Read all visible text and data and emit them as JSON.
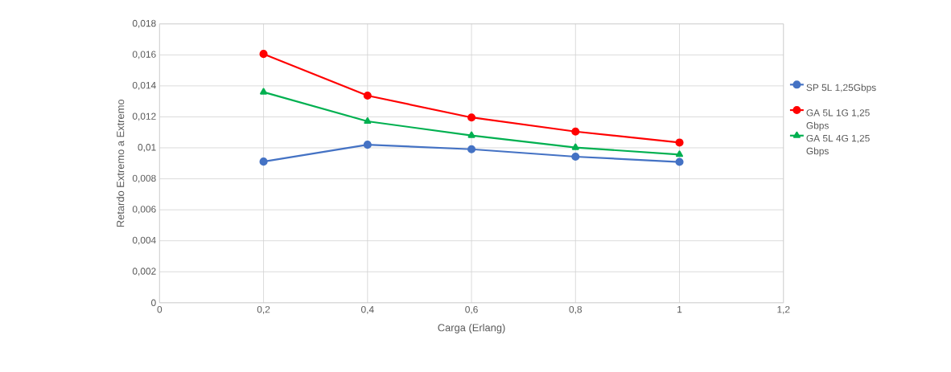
{
  "chart_data": {
    "type": "line",
    "xlabel": "Carga (Erlang)",
    "ylabel": "Retardo Extremo a Extremo",
    "x": [
      0.2,
      0.4,
      0.6,
      0.8,
      1.0
    ],
    "series": [
      {
        "name": "SP 5L 1,25Gbps",
        "color": "#4472c4",
        "marker": "circle",
        "values": [
          0.00911,
          0.0102,
          0.00991,
          0.00943,
          0.00909
        ]
      },
      {
        "name": "GA 5L 1G 1,25 Gbps",
        "color": "#ff0000",
        "marker": "circle",
        "values": [
          0.01606,
          0.01337,
          0.01196,
          0.01105,
          0.01034
        ]
      },
      {
        "name": "GA 5L 4G 1,25 Gbps",
        "color": "#00b050",
        "marker": "triangle",
        "values": [
          0.0136,
          0.01171,
          0.0108,
          0.01002,
          0.00957
        ]
      }
    ],
    "xlim": [
      0,
      1.2
    ],
    "xticks": [
      0,
      {
        "value": 0.2,
        "label": "0,2"
      },
      {
        "value": 0.4,
        "label": "0,4"
      },
      {
        "value": 0.6,
        "label": "0,6"
      },
      {
        "value": 0.8,
        "label": "0,8"
      },
      1,
      {
        "value": 1.2,
        "label": "1,2"
      }
    ],
    "ylim": [
      0,
      0.018
    ],
    "yticks": [
      0,
      {
        "value": 0.002,
        "label": "0,002"
      },
      {
        "value": 0.004,
        "label": "0,004"
      },
      {
        "value": 0.006,
        "label": "0,006"
      },
      {
        "value": 0.008,
        "label": "0,008"
      },
      {
        "value": 0.01,
        "label": "0,01"
      },
      {
        "value": 0.012,
        "label": "0,012"
      },
      {
        "value": 0.014,
        "label": "0,014"
      },
      {
        "value": 0.016,
        "label": "0,016"
      },
      {
        "value": 0.018,
        "label": "0,018"
      }
    ],
    "grid": true,
    "legend": "right"
  }
}
